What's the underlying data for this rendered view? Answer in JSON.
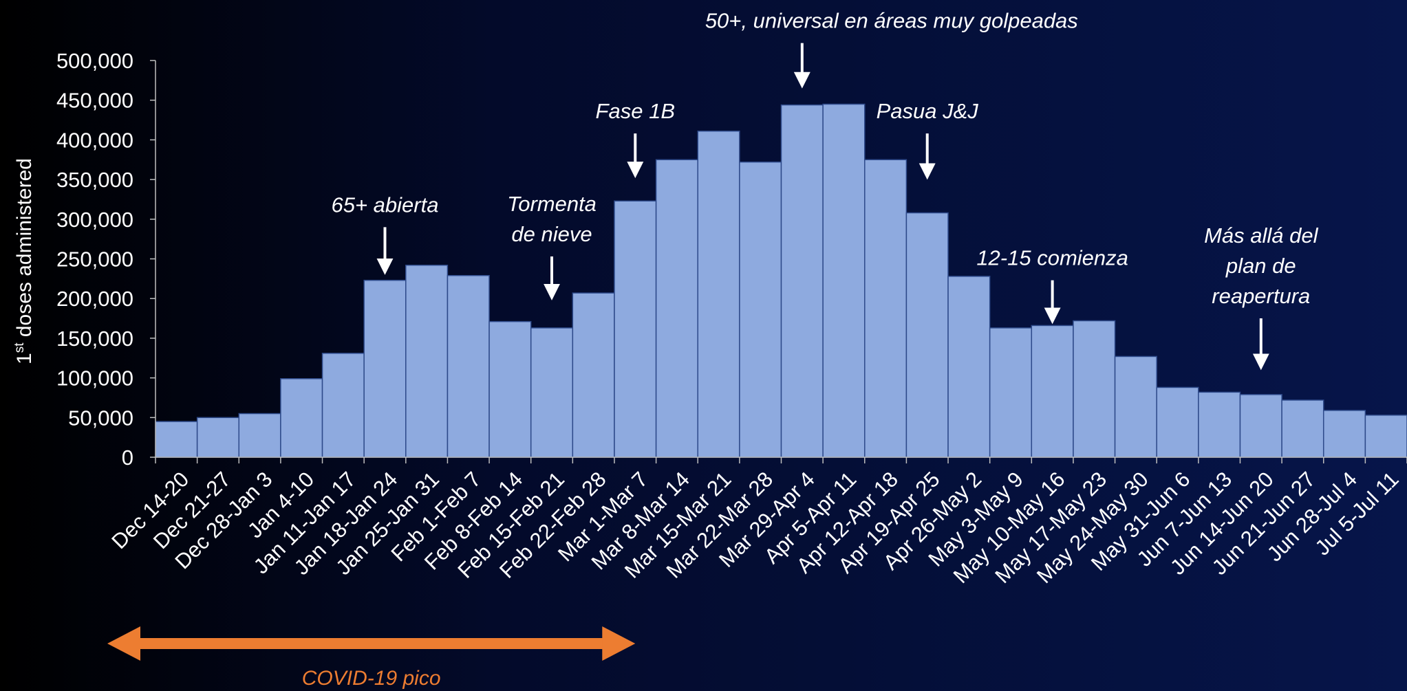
{
  "chart_data": {
    "type": "bar",
    "ylabel": "1st doses administered",
    "ylabel_base": "1",
    "ylabel_sup": "st",
    "ylabel_rest": " doses administered",
    "ylim": [
      0,
      500000
    ],
    "yticks": [
      0,
      50000,
      100000,
      150000,
      200000,
      250000,
      300000,
      350000,
      400000,
      450000,
      500000
    ],
    "ytick_labels": [
      "0",
      "50,000",
      "100,000",
      "150,000",
      "200,000",
      "250,000",
      "300,000",
      "350,000",
      "400,000",
      "450,000",
      "500,000"
    ],
    "grid": false,
    "bar_color": "#8eaadf",
    "bar_edge_color": "#2e4a8a",
    "categories": [
      "Dec 14-20",
      "Dec 21-27",
      "Dec 28-Jan 3",
      "Jan 4-10",
      "Jan 11-Jan 17",
      "Jan 18-Jan 24",
      "Jan 25-Jan 31",
      "Feb 1-Feb 7",
      "Feb 8-Feb 14",
      "Feb 15-Feb 21",
      "Feb 22-Feb 28",
      "Mar 1-Mar 7",
      "Mar 8-Mar 14",
      "Mar 15-Mar 21",
      "Mar 22-Mar 28",
      "Mar 29-Apr 4",
      "Apr 5-Apr 11",
      "Apr 12-Apr 18",
      "Apr 19-Apr 25",
      "Apr 26-May 2",
      "May 3-May 9",
      "May 10-May 16",
      "May 17-May 23",
      "May 24-May 30",
      "May 31-Jun 6",
      "Jun 7-Jun 13",
      "Jun 14-Jun 20",
      "Jun 21-Jun 27",
      "Jun 28-Jul 4",
      "Jul 5-Jul 11"
    ],
    "values": [
      45000,
      50000,
      55000,
      99000,
      131000,
      223000,
      242000,
      229000,
      171000,
      163000,
      207000,
      323000,
      375000,
      411000,
      372000,
      444000,
      445000,
      375000,
      308000,
      228000,
      163000,
      166000,
      172000,
      127000,
      88000,
      82000,
      79000,
      72000,
      59000,
      53000
    ],
    "annotations": [
      {
        "lines": [
          "65+ abierta"
        ],
        "category": "Jan 18-Jan 24",
        "arrow_top": 290000,
        "arrow_tip": 228000
      },
      {
        "lines": [
          "Tormenta",
          "de nieve"
        ],
        "category": "Feb 15-Feb 21",
        "arrow_top": 253000,
        "arrow_tip": 196000
      },
      {
        "lines": [
          "Fase 1B"
        ],
        "category": "Mar 1-Mar 7",
        "arrow_top": 408000,
        "arrow_tip": 350000
      },
      {
        "lines": [
          "50+, universal en áreas muy golpeadas"
        ],
        "category": "Mar 29-Apr 4",
        "arrow_top": 522000,
        "arrow_tip": 463000
      },
      {
        "lines": [
          "Pasua J&J"
        ],
        "category": "Apr 19-Apr 25",
        "arrow_top": 408000,
        "arrow_tip": 348000
      },
      {
        "lines": [
          "12-15 comienza"
        ],
        "category": "May 10-May 16",
        "arrow_top": 223000,
        "arrow_tip": 166000
      },
      {
        "lines": [
          "Más allá del",
          "plan de",
          "reapertura"
        ],
        "category": "Jun 14-Jun 20",
        "arrow_top": 175000,
        "arrow_tip": 108000
      }
    ],
    "range_annotation": {
      "label": "COVID-19 pico",
      "from_category": "Dec 14-20",
      "to_category": "Mar 1-Mar 7",
      "color": "#ed7d31"
    }
  }
}
